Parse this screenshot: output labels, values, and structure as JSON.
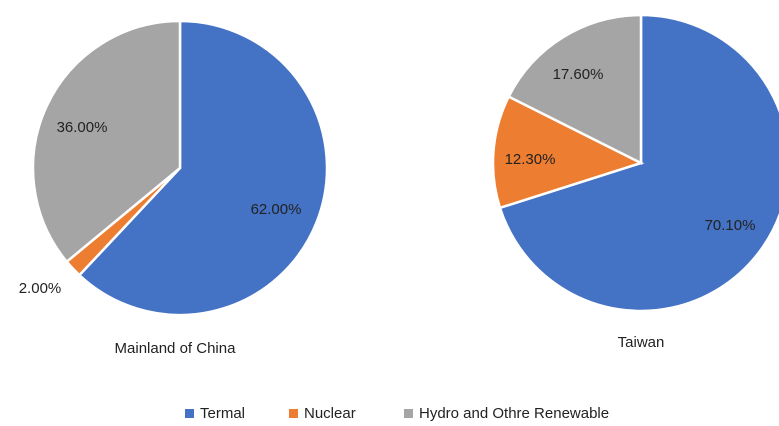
{
  "chart_data": [
    {
      "type": "pie",
      "title": "Mainland of China",
      "categories": [
        "Termal",
        "Nuclear",
        "Hydro and Othre Renewable"
      ],
      "values": [
        62,
        2,
        36
      ],
      "value_labels": [
        "62.00%",
        "2.00%",
        "36.00%"
      ],
      "colors": [
        "#4472c4",
        "#ed7d31",
        "#a5a5a5"
      ]
    },
    {
      "type": "pie",
      "title": "Taiwan",
      "categories": [
        "Termal",
        "Nuclear",
        "Hydro and Othre Renewable"
      ],
      "values": [
        70.1,
        12.3,
        17.6
      ],
      "value_labels": [
        "70.10%",
        "12.30%",
        "17.60%"
      ],
      "colors": [
        "#4472c4",
        "#ed7d31",
        "#a5a5a5"
      ]
    }
  ]
}
